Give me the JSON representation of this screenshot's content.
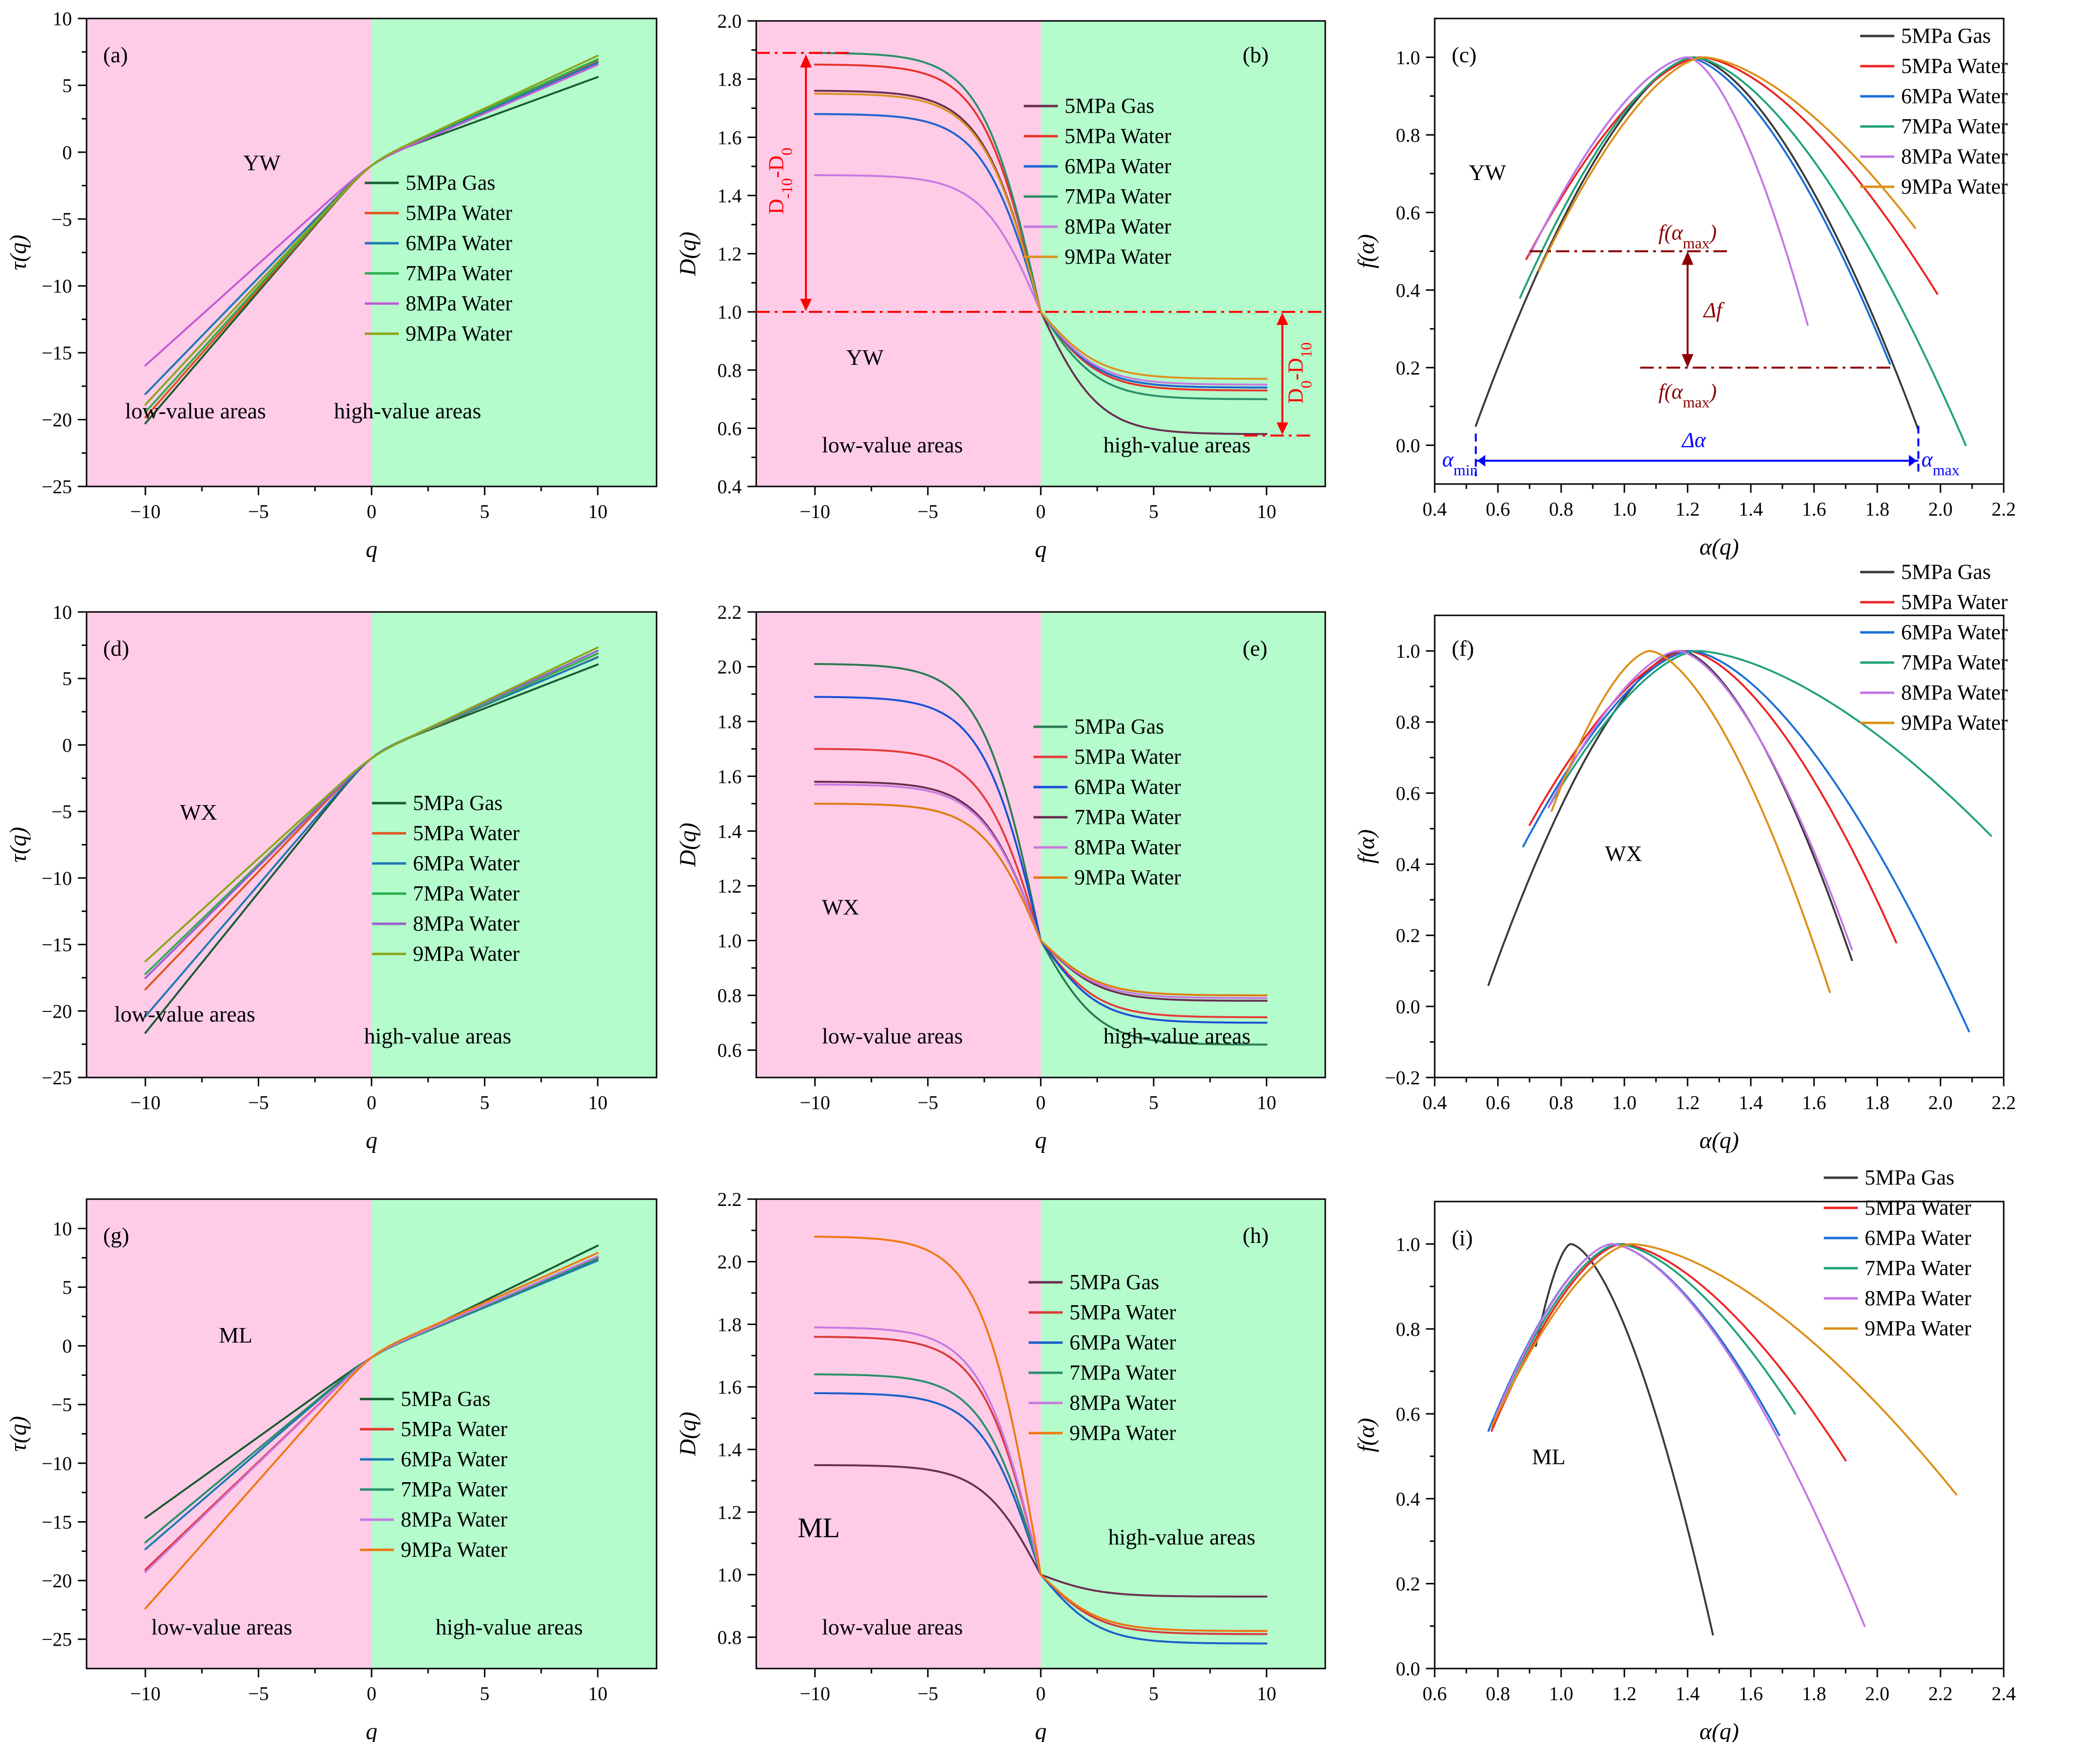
{
  "colors": {
    "low_region": "#ffcce8",
    "high_region": "#b4fccc",
    "red_annotation": "#ff0000",
    "darkred_annotation": "#8b0000",
    "blue_annotation": "#0000ff"
  },
  "region_labels": {
    "low": "low-value areas",
    "high": "high-value areas"
  },
  "axis_labels": {
    "q": "q",
    "tau": "τ(q)",
    "D": "D(q)",
    "alpha": "α(q)",
    "f": "f(α)"
  },
  "annotations_c": {
    "f_amax_top": "f(α",
    "f_amax_top_sub": "max",
    "f_amax_top_end": ")",
    "f_amax_bottom": "f(α",
    "f_amax_bottom_sub": "max",
    "f_amax_bottom_end": ")",
    "delta_f": "Δf",
    "delta_alpha": "Δα",
    "alpha_min": "α",
    "alpha_min_sub": "min",
    "alpha_max": "α",
    "alpha_max_sub": "max"
  },
  "annotations_b": {
    "upper_left": "D",
    "upper_sub1": "-10",
    "upper_mid": "-D",
    "upper_sub2": "0",
    "lower_left": "D",
    "lower_sub1": "0",
    "lower_mid": "-D",
    "lower_sub2": "10"
  },
  "chart_data": [
    {
      "id": "a",
      "type": "line",
      "label": "(a)",
      "sample": "YW",
      "xlabel": "q",
      "ylabel": "τ(q)",
      "xlim": [
        -12.6,
        12.6
      ],
      "ylim": [
        -25,
        10
      ],
      "xticks": [
        -10,
        -5,
        0,
        5,
        10
      ],
      "yticks": [
        -25,
        -20,
        -15,
        -10,
        -5,
        0,
        5,
        10
      ],
      "regions": true,
      "region_labels": {
        "low": "low-value areas",
        "high": "high-value areas"
      },
      "legend": [
        "5MPa Gas",
        "5MPa Water",
        "6MPa Water",
        "7MPa Water",
        "8MPa Water",
        "9MPa Water"
      ],
      "series": [
        {
          "name": "5MPa Gas",
          "color": "#1a5c32",
          "x": [
            -10,
            0,
            10
          ],
          "y": [
            -20.7,
            -1,
            5.2
          ]
        },
        {
          "name": "5MPa Water",
          "color": "#e0541c",
          "x": [
            -10,
            0,
            10
          ],
          "y": [
            -20.2,
            -1,
            6.5
          ]
        },
        {
          "name": "6MPa Water",
          "color": "#1e78b4",
          "x": [
            -10,
            0,
            10
          ],
          "y": [
            -18.4,
            -1,
            6.4
          ]
        },
        {
          "name": "7MPa Water",
          "color": "#2cae4e",
          "x": [
            -10,
            0,
            10
          ],
          "y": [
            -19.8,
            -1,
            6.6
          ]
        },
        {
          "name": "8MPa Water",
          "color": "#c25cd6",
          "x": [
            -10,
            0,
            10
          ],
          "y": [
            -16.2,
            -1,
            6.3
          ]
        },
        {
          "name": "9MPa Water",
          "color": "#8aa61a",
          "x": [
            -10,
            0,
            10
          ],
          "y": [
            -19.2,
            -1,
            6.9
          ]
        }
      ]
    },
    {
      "id": "b",
      "type": "line",
      "label": "(b)",
      "sample": "YW",
      "xlabel": "q",
      "ylabel": "D(q)",
      "xlim": [
        -12.6,
        12.6
      ],
      "ylim": [
        0.4,
        2.0
      ],
      "xticks": [
        -10,
        -5,
        0,
        5,
        10
      ],
      "yticks": [
        0.4,
        0.6,
        0.8,
        1.0,
        1.2,
        1.4,
        1.6,
        1.8,
        2.0
      ],
      "regions": true,
      "region_labels": {
        "low": "low-value areas",
        "high": "high-value areas"
      },
      "legend": [
        "5MPa Gas",
        "5MPa Water",
        "6MPa Water",
        "7MPa Water",
        "8MPa Water",
        "9MPa Water"
      ],
      "series": [
        {
          "name": "5MPa Gas",
          "color": "#6b2f4f",
          "dmin": 1.76,
          "dmax": 0.58
        },
        {
          "name": "5MPa Water",
          "color": "#e8322a",
          "dmin": 1.85,
          "dmax": 0.73
        },
        {
          "name": "6MPa Water",
          "color": "#1e63d0",
          "dmin": 1.68,
          "dmax": 0.74
        },
        {
          "name": "7MPa Water",
          "color": "#2a8f6a",
          "dmin": 1.89,
          "dmax": 0.7
        },
        {
          "name": "8MPa Water",
          "color": "#c77ae0",
          "dmin": 1.47,
          "dmax": 0.75
        },
        {
          "name": "9MPa Water",
          "color": "#d99320",
          "dmin": 1.75,
          "dmax": 0.77
        }
      ]
    },
    {
      "id": "c",
      "type": "line",
      "label": "(c)",
      "sample": "YW",
      "xlabel": "α(q)",
      "ylabel": "f(α)",
      "xlim": [
        0.4,
        2.2
      ],
      "ylim": [
        -0.1,
        1.1
      ],
      "xticks": [
        0.4,
        0.6,
        0.8,
        1.0,
        1.2,
        1.4,
        1.6,
        1.8,
        2.0,
        2.2
      ],
      "yticks": [
        0.0,
        0.2,
        0.4,
        0.6,
        0.8,
        1.0
      ],
      "regions": false,
      "legend": [
        "5MPa Gas",
        "5MPa Water",
        "6MPa Water",
        "7MPa Water",
        "8MPa Water",
        "9MPa Water"
      ],
      "series": [
        {
          "name": "5MPa Gas",
          "color": "#3a3a3a",
          "a0": 1.22,
          "amin": 0.53,
          "amax": 1.93,
          "fmin": 0.05,
          "fmax": 0.04
        },
        {
          "name": "5MPa Water",
          "color": "#ee2424",
          "a0": 1.24,
          "amin": 0.69,
          "amax": 1.99,
          "fmin": 0.48,
          "fmax": 0.39
        },
        {
          "name": "6MPa Water",
          "color": "#1a6fd6",
          "a0": 1.2,
          "amin": 0.7,
          "amax": 1.84,
          "fmin": 0.49,
          "fmax": 0.21
        },
        {
          "name": "7MPa Water",
          "color": "#1fa27a",
          "a0": 1.22,
          "amin": 0.67,
          "amax": 2.08,
          "fmin": 0.38,
          "fmax": 0.0
        },
        {
          "name": "8MPa Water",
          "color": "#c277e6",
          "a0": 1.2,
          "amin": 0.7,
          "amax": 1.58,
          "fmin": 0.49,
          "fmax": 0.31
        },
        {
          "name": "9MPa Water",
          "color": "#dc8f16",
          "a0": 1.25,
          "amin": 0.73,
          "amax": 1.92,
          "fmin": 0.45,
          "fmax": 0.56
        }
      ]
    },
    {
      "id": "d",
      "type": "line",
      "label": "(d)",
      "sample": "WX",
      "xlabel": "q",
      "ylabel": "τ(q)",
      "xlim": [
        -12.6,
        12.6
      ],
      "ylim": [
        -25,
        10
      ],
      "xticks": [
        -10,
        -5,
        0,
        5,
        10
      ],
      "yticks": [
        -25,
        -20,
        -15,
        -10,
        -5,
        0,
        5,
        10
      ],
      "regions": true,
      "region_labels": {
        "low": "low-value areas",
        "high": "high-value areas"
      },
      "legend": [
        "5MPa Gas",
        "5MPa Water",
        "6MPa Water",
        "7MPa Water",
        "8MPa Water",
        "9MPa Water"
      ],
      "series": [
        {
          "name": "5MPa Gas",
          "color": "#1a5c32",
          "x": [
            -10,
            0,
            10
          ],
          "y": [
            -22.1,
            -1,
            5.6
          ]
        },
        {
          "name": "5MPa Water",
          "color": "#e0541c",
          "x": [
            -10,
            0,
            10
          ],
          "y": [
            -18.7,
            -1,
            6.3
          ]
        },
        {
          "name": "6MPa Water",
          "color": "#1e78b4",
          "x": [
            -10,
            0,
            10
          ],
          "y": [
            -20.8,
            -1,
            6.2
          ]
        },
        {
          "name": "7MPa Water",
          "color": "#2cae4e",
          "x": [
            -10,
            0,
            10
          ],
          "y": [
            -17.5,
            -1,
            6.6
          ]
        },
        {
          "name": "8MPa Water",
          "color": "#9b5fd0",
          "x": [
            -10,
            0,
            10
          ],
          "y": [
            -17.8,
            -1,
            6.8
          ]
        },
        {
          "name": "9MPa Water",
          "color": "#8aa61a",
          "x": [
            -10,
            0,
            10
          ],
          "y": [
            -16.5,
            -1,
            7.1
          ]
        }
      ]
    },
    {
      "id": "e",
      "type": "line",
      "label": "(e)",
      "sample": "WX",
      "xlabel": "q",
      "ylabel": "D(q)",
      "xlim": [
        -12.6,
        12.6
      ],
      "ylim": [
        0.5,
        2.2
      ],
      "xticks": [
        -10,
        -5,
        0,
        5,
        10
      ],
      "yticks": [
        0.6,
        0.8,
        1.0,
        1.2,
        1.4,
        1.6,
        1.8,
        2.0,
        2.2
      ],
      "regions": true,
      "region_labels": {
        "low": "low-value areas",
        "high": "high-value areas"
      },
      "legend": [
        "5MPa Gas",
        "5MPa Water",
        "6MPa Water",
        "7MPa Water",
        "8MPa Water",
        "9MPa Water"
      ],
      "series": [
        {
          "name": "5MPa Gas",
          "color": "#2a7a52",
          "dmin": 2.01,
          "dmax": 0.62
        },
        {
          "name": "5MPa Water",
          "color": "#e63a3a",
          "dmin": 1.7,
          "dmax": 0.72
        },
        {
          "name": "6MPa Water",
          "color": "#1a4fd6",
          "dmin": 1.89,
          "dmax": 0.7
        },
        {
          "name": "7MPa Water",
          "color": "#6a2f4f",
          "dmin": 1.58,
          "dmax": 0.78
        },
        {
          "name": "8MPa Water",
          "color": "#c77ae0",
          "dmin": 1.57,
          "dmax": 0.79
        },
        {
          "name": "9MPa Water",
          "color": "#e07c10",
          "dmin": 1.5,
          "dmax": 0.8
        }
      ]
    },
    {
      "id": "f",
      "type": "line",
      "label": "(f)",
      "sample": "WX",
      "xlabel": "α(q)",
      "ylabel": "f(α)",
      "xlim": [
        0.4,
        2.2
      ],
      "ylim": [
        -0.2,
        1.1
      ],
      "xticks": [
        0.4,
        0.6,
        0.8,
        1.0,
        1.2,
        1.4,
        1.6,
        1.8,
        2.0,
        2.2
      ],
      "yticks": [
        -0.2,
        0.0,
        0.2,
        0.4,
        0.6,
        0.8,
        1.0
      ],
      "regions": false,
      "legend": [
        "5MPa Gas",
        "5MPa Water",
        "6MPa Water",
        "7MPa Water",
        "8MPa Water",
        "9MPa Water"
      ],
      "series": [
        {
          "name": "5MPa Gas",
          "color": "#3a3a3a",
          "a0": 1.18,
          "amin": 0.57,
          "amax": 1.72,
          "fmin": 0.06,
          "fmax": 0.13
        },
        {
          "name": "5MPa Water",
          "color": "#ee2424",
          "a0": 1.2,
          "amin": 0.7,
          "amax": 1.86,
          "fmin": 0.51,
          "fmax": 0.18
        },
        {
          "name": "6MPa Water",
          "color": "#1a6fd6",
          "a0": 1.21,
          "amin": 0.68,
          "amax": 2.09,
          "fmin": 0.45,
          "fmax": -0.07
        },
        {
          "name": "7MPa Water",
          "color": "#1fa27a",
          "a0": 1.23,
          "amin": 0.76,
          "amax": 2.16,
          "fmin": 0.56,
          "fmax": 0.48
        },
        {
          "name": "8MPa Water",
          "color": "#c277e6",
          "a0": 1.17,
          "amin": 0.76,
          "amax": 1.72,
          "fmin": 0.56,
          "fmax": 0.16
        },
        {
          "name": "9MPa Water",
          "color": "#dc8f16",
          "a0": 1.08,
          "amin": 0.77,
          "amax": 1.65,
          "fmin": 0.55,
          "fmax": 0.04
        }
      ]
    },
    {
      "id": "g",
      "type": "line",
      "label": "(g)",
      "sample": "ML",
      "xlabel": "q",
      "ylabel": "τ(q)",
      "xlim": [
        -12.6,
        12.6
      ],
      "ylim": [
        -27.5,
        12.5
      ],
      "xticks": [
        -10,
        -5,
        0,
        5,
        10
      ],
      "yticks": [
        -25,
        -20,
        -15,
        -10,
        -5,
        0,
        5,
        10
      ],
      "regions": true,
      "region_labels": {
        "low": "low-value areas",
        "high": "high-value areas"
      },
      "legend": [
        "5MPa Gas",
        "5MPa Water",
        "6MPa Water",
        "7MPa Water",
        "8MPa Water",
        "9MPa Water"
      ],
      "series": [
        {
          "name": "5MPa Gas",
          "color": "#1a5c32",
          "x": [
            -10,
            0,
            10
          ],
          "y": [
            -14.8,
            -1,
            8.4
          ]
        },
        {
          "name": "5MPa Water",
          "color": "#e8322a",
          "x": [
            -10,
            0,
            10
          ],
          "y": [
            -19.4,
            -1,
            7.2
          ]
        },
        {
          "name": "6MPa Water",
          "color": "#1e78b4",
          "x": [
            -10,
            0,
            10
          ],
          "y": [
            -17.6,
            -1,
            7.0
          ]
        },
        {
          "name": "7MPa Water",
          "color": "#2a8f6a",
          "x": [
            -10,
            0,
            10
          ],
          "y": [
            -17.0,
            -1,
            7.2
          ]
        },
        {
          "name": "8MPa Water",
          "color": "#c77ae0",
          "x": [
            -10,
            0,
            10
          ],
          "y": [
            -19.6,
            -1,
            7.3
          ]
        },
        {
          "name": "9MPa Water",
          "color": "#f07810",
          "x": [
            -10,
            0,
            10
          ],
          "y": [
            -22.8,
            -1,
            7.5
          ]
        }
      ]
    },
    {
      "id": "h",
      "type": "line",
      "label": "(h)",
      "sample": "ML",
      "xlabel": "q",
      "ylabel": "D(q)",
      "xlim": [
        -12.6,
        12.6
      ],
      "ylim": [
        0.7,
        2.2
      ],
      "xticks": [
        -10,
        -5,
        0,
        5,
        10
      ],
      "yticks": [
        0.8,
        1.0,
        1.2,
        1.4,
        1.6,
        1.8,
        2.0,
        2.2
      ],
      "regions": true,
      "region_labels": {
        "low": "low-value areas",
        "high": "high-value areas"
      },
      "legend": [
        "5MPa Gas",
        "5MPa Water",
        "6MPa Water",
        "7MPa Water",
        "8MPa Water",
        "9MPa Water"
      ],
      "series": [
        {
          "name": "5MPa Gas",
          "color": "#6b2f4f",
          "dmin": 1.35,
          "dmax": 0.93
        },
        {
          "name": "5MPa Water",
          "color": "#d93a3a",
          "dmin": 1.76,
          "dmax": 0.81
        },
        {
          "name": "6MPa Water",
          "color": "#1a5fc8",
          "dmin": 1.58,
          "dmax": 0.78
        },
        {
          "name": "7MPa Water",
          "color": "#2a8f6a",
          "dmin": 1.64,
          "dmax": 0.82
        },
        {
          "name": "8MPa Water",
          "color": "#c77ae0",
          "dmin": 1.79,
          "dmax": 0.82
        },
        {
          "name": "9MPa Water",
          "color": "#f07810",
          "dmin": 2.08,
          "dmax": 0.82
        }
      ]
    },
    {
      "id": "i",
      "type": "line",
      "label": "(i)",
      "sample": "ML",
      "xlabel": "α(q)",
      "ylabel": "f(α)",
      "xlim": [
        0.6,
        2.4
      ],
      "ylim": [
        0.0,
        1.1
      ],
      "xticks": [
        0.6,
        0.8,
        1.0,
        1.2,
        1.4,
        1.6,
        1.8,
        2.0,
        2.2,
        2.4
      ],
      "yticks": [
        0.0,
        0.2,
        0.4,
        0.6,
        0.8,
        1.0
      ],
      "regions": false,
      "legend": [
        "5MPa Gas",
        "5MPa Water",
        "6MPa Water",
        "7MPa Water",
        "8MPa Water",
        "9MPa Water"
      ],
      "series": [
        {
          "name": "5MPa Gas",
          "color": "#3a3a3a",
          "a0": 1.03,
          "amin": 0.92,
          "amax": 1.48,
          "fmin": 0.76,
          "fmax": 0.08
        },
        {
          "name": "5MPa Water",
          "color": "#ee2424",
          "a0": 1.19,
          "amin": 0.78,
          "amax": 1.9,
          "fmin": 0.56,
          "fmax": 0.49
        },
        {
          "name": "6MPa Water",
          "color": "#1a6fd6",
          "a0": 1.16,
          "amin": 0.77,
          "amax": 1.69,
          "fmin": 0.56,
          "fmax": 0.55
        },
        {
          "name": "7MPa Water",
          "color": "#1fa27a",
          "a0": 1.18,
          "amin": 0.79,
          "amax": 1.74,
          "fmin": 0.59,
          "fmax": 0.6
        },
        {
          "name": "8MPa Water",
          "color": "#c277e6",
          "a0": 1.16,
          "amin": 0.79,
          "amax": 1.96,
          "fmin": 0.59,
          "fmax": 0.1
        },
        {
          "name": "9MPa Water",
          "color": "#dc8f16",
          "a0": 1.22,
          "amin": 0.78,
          "amax": 2.25,
          "fmin": 0.57,
          "fmax": 0.41
        }
      ]
    }
  ]
}
